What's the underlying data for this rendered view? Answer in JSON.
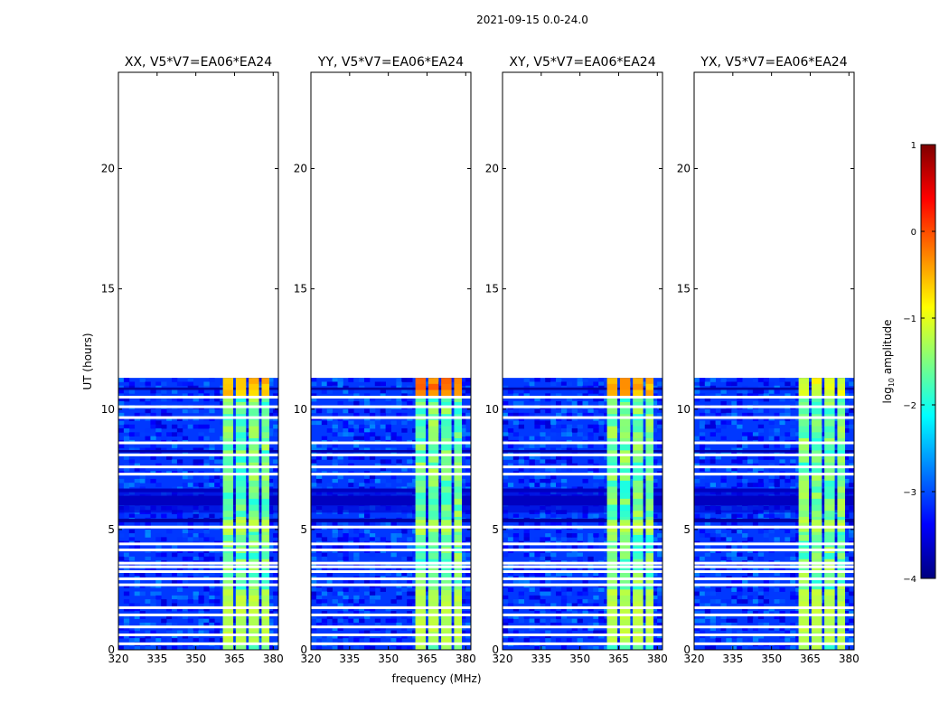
{
  "figure": {
    "suptitle": "2021-09-15 0.0-24.0",
    "shared_xlabel": "frequency (MHz)",
    "shared_ylabel": "UT (hours)"
  },
  "colorbar": {
    "label": "log10 amplitude",
    "label_prefix": "log",
    "label_sub": "10",
    "label_suffix": " amplitude",
    "range": [
      -4,
      1
    ],
    "ticks": [
      "1",
      "0",
      "−1",
      "−2",
      "−3",
      "−4"
    ],
    "tick_values": [
      1,
      0,
      -1,
      -2,
      -3,
      -4
    ],
    "colormap": "jet",
    "colormap_stops": [
      "#00007f",
      "#0000ff",
      "#007fff",
      "#00ffff",
      "#7fff7f",
      "#ffff00",
      "#ff7f00",
      "#ff0000",
      "#7f0000"
    ]
  },
  "chart_data": {
    "type": "heatmap",
    "xlabel": "frequency (MHz)",
    "ylabel": "UT (hours)",
    "xlim": [
      320,
      382
    ],
    "ylim": [
      0,
      24
    ],
    "x_ticks": [
      320,
      335,
      350,
      365,
      380
    ],
    "x_tick_labels": [
      "320",
      "335",
      "350",
      "365",
      "380"
    ],
    "y_ticks": [
      0,
      5,
      10,
      15,
      20
    ],
    "y_tick_labels": [
      "0",
      "5",
      "10",
      "15",
      "20"
    ],
    "data_time_range_hours": [
      0,
      11.3
    ],
    "background_level_log10": -3.1,
    "band_level_log10": -1.6,
    "band_freq_range_mhz": [
      360,
      378
    ],
    "band_columns_mhz": [
      [
        360.5,
        364.5
      ],
      [
        365.5,
        369.5
      ],
      [
        370.5,
        374.5
      ],
      [
        375.5,
        378.5
      ]
    ],
    "gap_times_hours": [
      0.25,
      0.62,
      0.95,
      1.45,
      1.75,
      2.7,
      2.95,
      3.25,
      3.45,
      3.6,
      4.15,
      4.4,
      5.1,
      7.3,
      7.6,
      8.1,
      8.6,
      9.65,
      10.1,
      10.5
    ],
    "dark_bands_hours": [
      [
        5.3,
        5.45
      ],
      [
        6.0,
        6.4
      ],
      [
        6.55,
        6.7
      ],
      [
        8.2,
        8.3
      ],
      [
        10.8,
        10.9
      ]
    ],
    "panels": [
      {
        "title": "XX, V5*V7=EA06*EA24",
        "polarization": "XX",
        "top_band_level_log10": -0.6
      },
      {
        "title": "YY, V5*V7=EA06*EA24",
        "polarization": "YY",
        "top_band_level_log10": -0.2
      },
      {
        "title": "XY, V5*V7=EA06*EA24",
        "polarization": "XY",
        "top_band_level_log10": -0.5
      },
      {
        "title": "YX, V5*V7=EA06*EA24",
        "polarization": "YX",
        "top_band_level_log10": -1.0
      }
    ]
  }
}
